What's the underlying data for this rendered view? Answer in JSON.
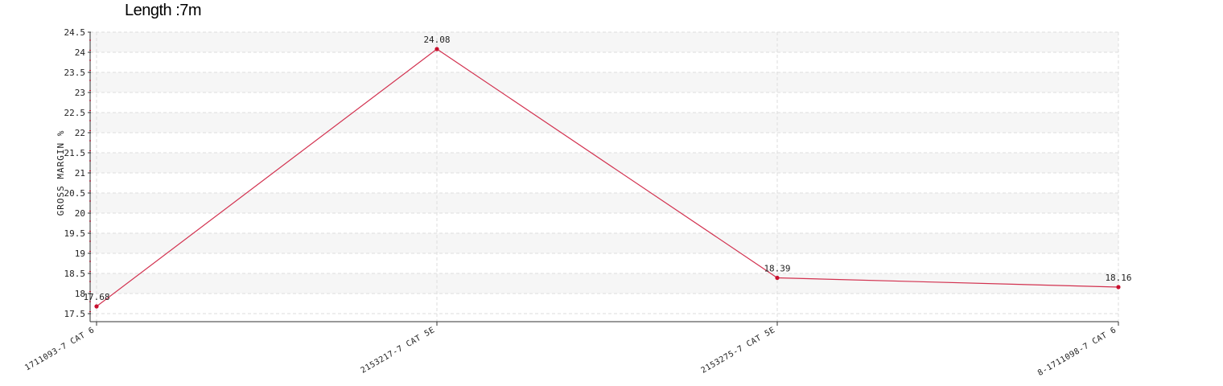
{
  "chart_data": {
    "type": "line",
    "title": "Length :7m",
    "xlabel": "",
    "ylabel": "GROSS MARGIN %",
    "categories": [
      "1711093-7 CAT 6",
      "2153217-7 CAT 5E",
      "2153275-7  CAT 5E",
      "8-1711098-7 CAT 6"
    ],
    "series": [
      {
        "values": [
          17.68,
          24.08,
          18.39,
          18.16
        ],
        "data_labels": [
          "17.68",
          "24.08",
          "18.39",
          "18.16"
        ]
      }
    ],
    "ylim": [
      17.5,
      24.5
    ],
    "yticks": [
      "17.5",
      "18",
      "18.5",
      "19",
      "19.5",
      "20",
      "20.5",
      "21",
      "21.5",
      "22",
      "22.5",
      "23",
      "23.5",
      "24",
      "24.5"
    ],
    "grid": true,
    "alternating_bands": true,
    "legend": "none",
    "colors": {
      "line": "#d2314f",
      "marker": "#c8102e",
      "band": "#f6f6f6",
      "grid": "#dddddd",
      "axis": "#333333"
    }
  }
}
